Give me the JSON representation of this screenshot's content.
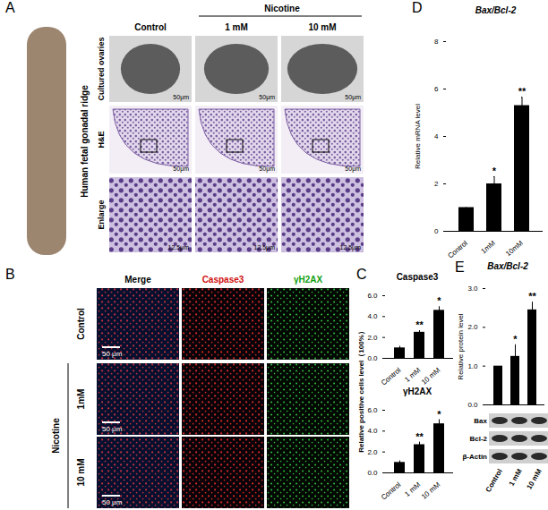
{
  "figure": {
    "panel_labels": [
      "A",
      "B",
      "C",
      "D",
      "E"
    ],
    "A": {
      "side_image": "Human fetal gonadal ridge",
      "group": "Nicotine",
      "columns": [
        "Control",
        "1 mM",
        "10 mM"
      ],
      "rows": [
        "Cultured ovaries",
        "H&E",
        "Enlarge"
      ],
      "scale_bars": [
        [
          "50μm",
          "50μm",
          "50μm"
        ],
        [
          "50μm",
          "50μm",
          "50μm"
        ],
        [
          "12.5μm",
          "12.5μm",
          "12.5μm"
        ]
      ]
    },
    "B": {
      "columns": [
        "Merge",
        "Caspase3",
        "γH2AX"
      ],
      "rows": [
        "Control",
        "1mM",
        "10 mM"
      ],
      "group": "Nicotine",
      "scale_bar": "50 μm"
    },
    "E_blot": {
      "rows": [
        "Bax",
        "Bcl-2",
        "β-Actin"
      ]
    }
  },
  "chart_data": [
    {
      "type": "bar",
      "title": "Caspase3",
      "y_label": "Relative positive cells level（100%）",
      "categories": [
        "Control",
        "1 mM",
        "10 mM"
      ],
      "values": [
        1,
        2.5,
        4.6
      ],
      "errors": [
        0.15,
        0.15,
        0.35
      ],
      "color": "#000000",
      "ylim": [
        0,
        6
      ],
      "yticks": [
        0,
        2,
        4,
        6
      ],
      "annotations": [
        {
          "x": "1 mM",
          "text": "**"
        },
        {
          "x": "10 mM",
          "text": "*"
        }
      ]
    },
    {
      "type": "bar",
      "title": "γH2AX",
      "categories": [
        "Control",
        "1 mM",
        "10 mM"
      ],
      "values": [
        1,
        2.7,
        4.7
      ],
      "errors": [
        0.15,
        0.25,
        0.4
      ],
      "color": "#000000",
      "ylim": [
        0,
        6
      ],
      "yticks": [
        0,
        2,
        4,
        6
      ],
      "annotations": [
        {
          "x": "1 mM",
          "text": "**"
        },
        {
          "x": "10 mM",
          "text": "*"
        }
      ]
    },
    {
      "type": "bar",
      "title": "Bax/Bcl-2",
      "y_label": "Relative mRNA level",
      "categories": [
        "Control",
        "1mM",
        "10mM"
      ],
      "values": [
        1,
        2.0,
        5.3
      ],
      "errors": [
        0,
        0.3,
        0.35
      ],
      "color": "#000000",
      "ylim": [
        0,
        8
      ],
      "yticks": [
        0,
        2,
        4,
        6,
        8
      ],
      "annotations": [
        {
          "x": "1mM",
          "text": "*"
        },
        {
          "x": "10mM",
          "text": "**"
        }
      ]
    },
    {
      "type": "bar",
      "title": "Bax/Bcl-2",
      "y_label": "Relative protein level",
      "categories": [
        "Control",
        "1 mM",
        "10 mM"
      ],
      "values": [
        1,
        1.25,
        2.45
      ],
      "errors": [
        0,
        0.3,
        0.2
      ],
      "color": "#000000",
      "ylim": [
        0,
        3
      ],
      "yticks": [
        0,
        1,
        2,
        3
      ],
      "tick_labels": "y",
      "annotations": [
        {
          "x": "1 mM",
          "text": "*"
        },
        {
          "x": "10 mM",
          "text": "**"
        }
      ]
    }
  ]
}
